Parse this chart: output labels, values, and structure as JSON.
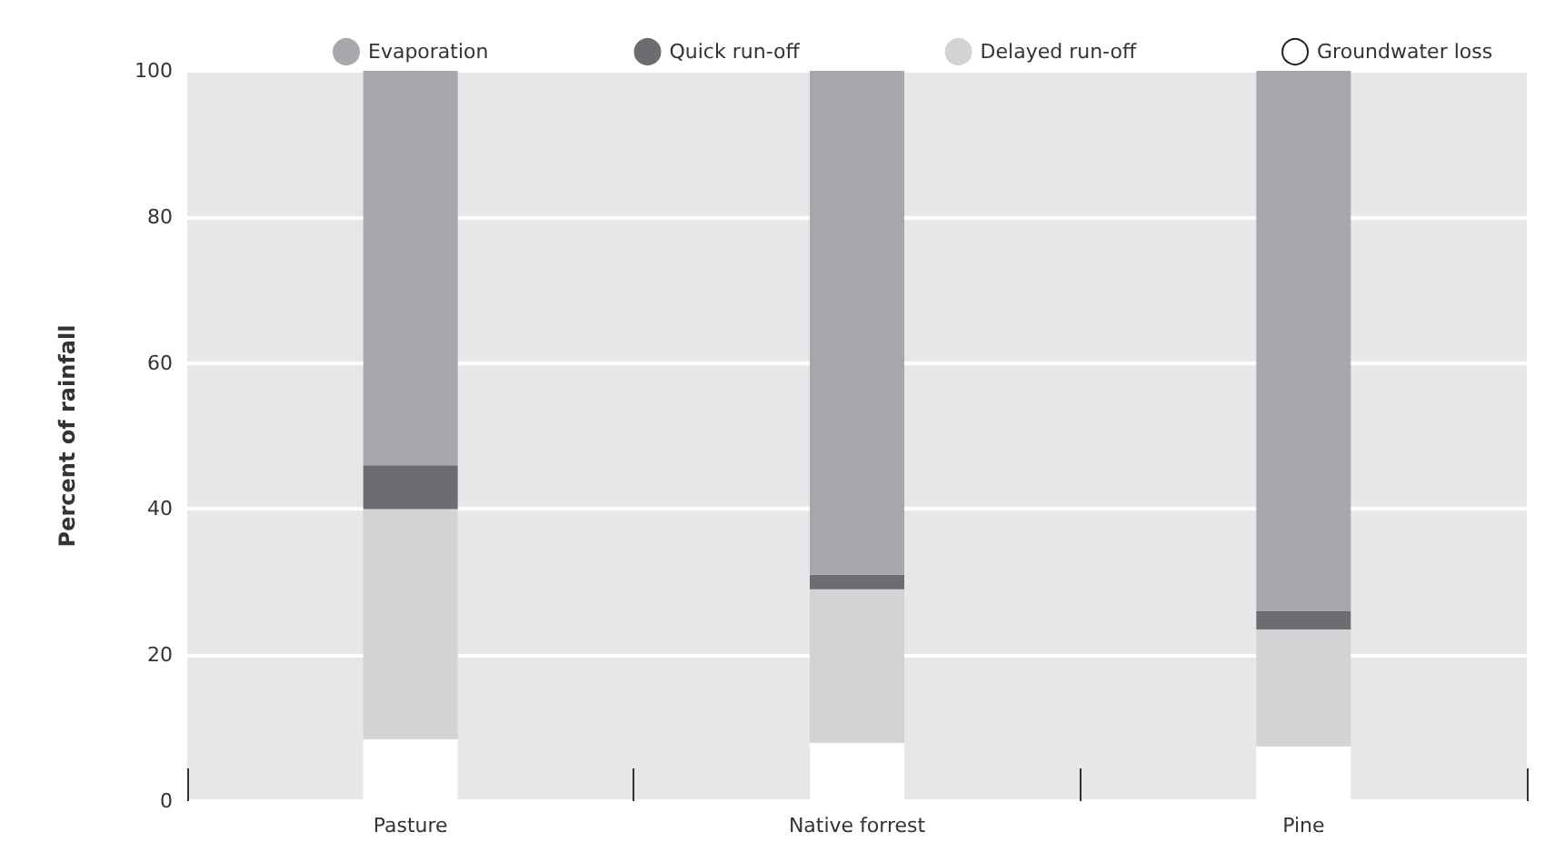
{
  "chart_data": {
    "type": "bar",
    "stacked": true,
    "ylabel": "Percent of rainfall",
    "categories": [
      "Pasture",
      "Native forrest",
      "Pine"
    ],
    "series": [
      {
        "name": "Groundwater loss",
        "color": "#ffffff",
        "values": [
          8.5,
          8,
          7.5
        ]
      },
      {
        "name": "Delayed run-off",
        "color": "#d2d3d5",
        "values": [
          31.5,
          21,
          16
        ]
      },
      {
        "name": "Quick run-off",
        "color": "#6c6d70",
        "values": [
          6,
          2,
          2.5
        ]
      },
      {
        "name": "Evaporation",
        "color": "#a7a8ac",
        "values": [
          54,
          69,
          74
        ]
      }
    ],
    "ylim": [
      0,
      100
    ],
    "yticks": [
      0,
      20,
      40,
      60,
      80,
      100
    ],
    "grid": "y",
    "legend": "top"
  }
}
